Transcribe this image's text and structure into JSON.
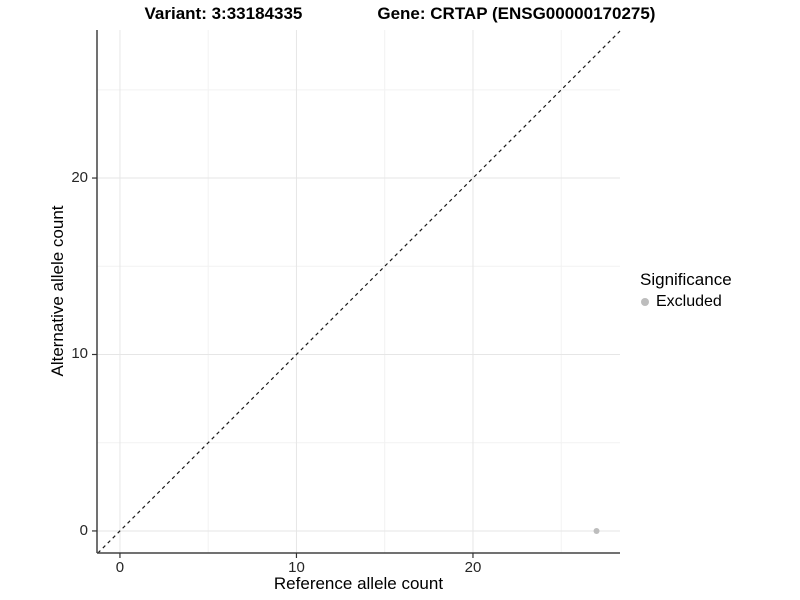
{
  "figure": {
    "title_variant": "Variant: 3:33184335",
    "title_gene": "Gene: CRTAP (ENSG00000170275)"
  },
  "legend": {
    "title": "Significance",
    "items": [
      {
        "label": "Excluded",
        "color": "#bdbdbd",
        "marker": "circle"
      }
    ]
  },
  "chart_data": {
    "type": "scatter",
    "title": "Variant: 3:33184335  /  Gene: CRTAP (ENSG00000170275)",
    "xlabel": "Reference allele count",
    "ylabel": "Alternative allele count",
    "xlim": [
      -1.3,
      28.33
    ],
    "ylim": [
      -1.25,
      28.39
    ],
    "x_ticks": [
      0,
      10,
      20
    ],
    "y_ticks": [
      0,
      10,
      20
    ],
    "x_minor_gridlines": [
      5,
      15,
      25
    ],
    "y_minor_gridlines": [
      5,
      15,
      25
    ],
    "grid": true,
    "legend_position": "right",
    "series": [
      {
        "name": "Excluded",
        "color": "#bdbdbd",
        "points": [
          {
            "x": 27,
            "y": 0
          }
        ]
      }
    ],
    "reference_line": {
      "equation": "y = x",
      "style": "dashed",
      "color": "#1a1a1a"
    }
  },
  "colors": {
    "background": "#ffffff",
    "grid_major": "#e6e6e6",
    "grid_minor": "#f2f2f2",
    "axis_line": "#424242",
    "tick": "#333333",
    "text": "#000000",
    "point": "#bdbdbd"
  }
}
